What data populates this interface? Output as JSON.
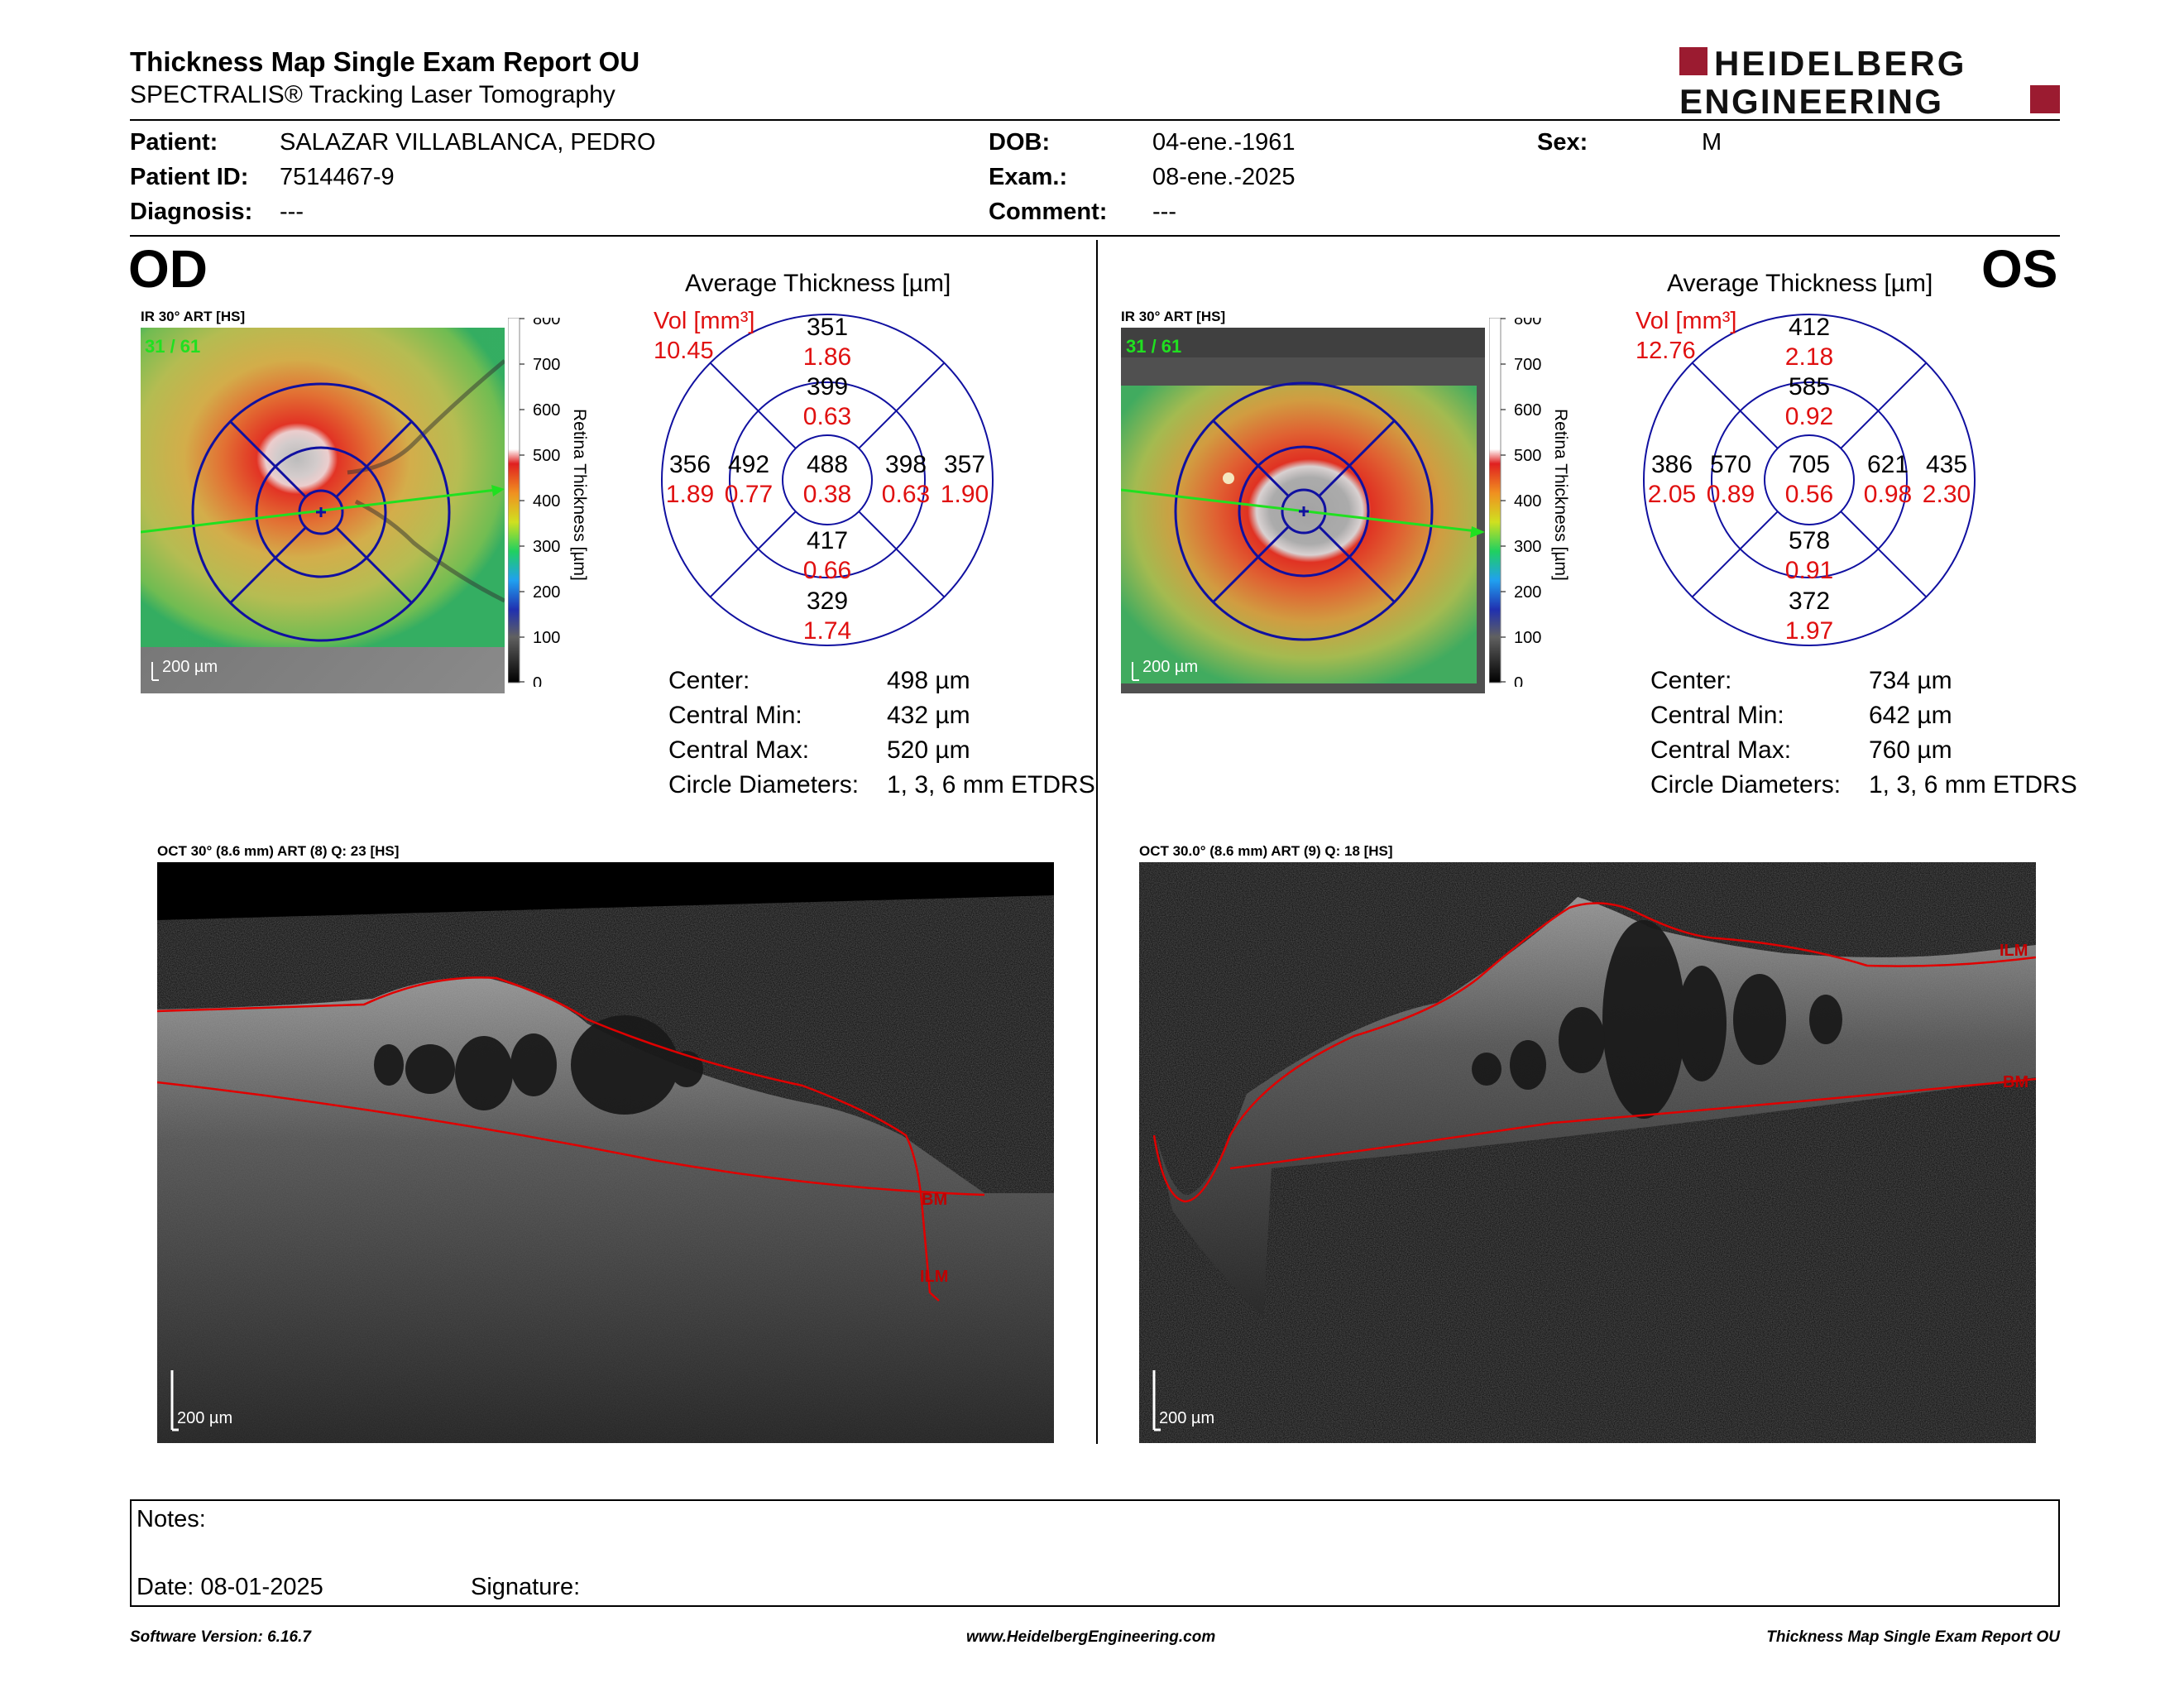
{
  "report": {
    "title": "Thickness Map Single Exam Report OU",
    "subtitle": "SPECTRALIS® Tracking Laser Tomography",
    "logo_line1": "HEIDELBERG",
    "logo_line2": "ENGINEERING",
    "brand_color": "#9b1b30"
  },
  "patient": {
    "patient_label": "Patient:",
    "patient_value": "SALAZAR VILLABLANCA, PEDRO",
    "id_label": "Patient ID:",
    "id_value": "7514467-9",
    "diagnosis_label": "Diagnosis:",
    "diagnosis_value": "---",
    "dob_label": "DOB:",
    "dob_value": "04-ene.-1961",
    "exam_label": "Exam.:",
    "exam_value": "08-ene.-2025",
    "comment_label": "Comment:",
    "comment_value": "---",
    "sex_label": "Sex:",
    "sex_value": "M"
  },
  "colorbar": {
    "title": "Retina  Thickness [µm]",
    "ticks": [
      "800",
      "700",
      "600",
      "500",
      "400",
      "300",
      "200",
      "100",
      "0"
    ]
  },
  "od": {
    "eye": "OD",
    "ir_label": "IR 30° ART [HS]",
    "frame_counter": "31 / 61",
    "scale_label": "200 µm",
    "avg_title": "Average Thickness [µm]",
    "vol_label": "Vol [mm³]",
    "vol_value": "10.45",
    "grid": {
      "center": [
        "488",
        "0.38"
      ],
      "inner_top": [
        "399",
        "0.63"
      ],
      "inner_left": [
        "492",
        "0.77"
      ],
      "inner_right": [
        "398",
        "0.63"
      ],
      "inner_bottom": [
        "417",
        "0.66"
      ],
      "outer_top": [
        "351",
        "1.86"
      ],
      "outer_left": [
        "356",
        "1.89"
      ],
      "outer_right": [
        "357",
        "1.90"
      ],
      "outer_bottom": [
        "329",
        "1.74"
      ]
    },
    "stats": [
      [
        "Center:",
        "498 µm"
      ],
      [
        "Central Min:",
        "432 µm"
      ],
      [
        "Central Max:",
        "520 µm"
      ],
      [
        "Circle Diameters:",
        "1, 3, 6 mm ETDRS"
      ]
    ],
    "oct_label": "OCT 30° (8.6 mm) ART (8) Q: 23 [HS]",
    "oct_scale": "200 µm",
    "ilm": "ILM",
    "bm": "BM"
  },
  "os": {
    "eye": "OS",
    "ir_label": "IR 30° ART [HS]",
    "frame_counter": "31 / 61",
    "scale_label": "200 µm",
    "avg_title": "Average Thickness [µm]",
    "vol_label": "Vol [mm³]",
    "vol_value": "12.76",
    "grid": {
      "center": [
        "705",
        "0.56"
      ],
      "inner_top": [
        "585",
        "0.92"
      ],
      "inner_left": [
        "570",
        "0.89"
      ],
      "inner_right": [
        "621",
        "0.98"
      ],
      "inner_bottom": [
        "578",
        "0.91"
      ],
      "outer_top": [
        "412",
        "2.18"
      ],
      "outer_left": [
        "386",
        "2.05"
      ],
      "outer_right": [
        "435",
        "2.30"
      ],
      "outer_bottom": [
        "372",
        "1.97"
      ]
    },
    "stats": [
      [
        "Center:",
        "734 µm"
      ],
      [
        "Central Min:",
        "642 µm"
      ],
      [
        "Central Max:",
        "760 µm"
      ],
      [
        "Circle Diameters:",
        "1, 3, 6 mm ETDRS"
      ]
    ],
    "oct_label": "OCT 30.0° (8.6 mm) ART (9) Q: 18 [HS]",
    "oct_scale": "200 µm",
    "ilm": "ILM",
    "bm": "BM"
  },
  "notes": {
    "notes_label": "Notes:",
    "date_label": "Date: 08-01-2025",
    "signature_label": "Signature:"
  },
  "footer": {
    "left": "Software Version: 6.16.7",
    "center": "www.HeidelbergEngineering.com",
    "right": "Thickness Map Single Exam Report OU"
  }
}
